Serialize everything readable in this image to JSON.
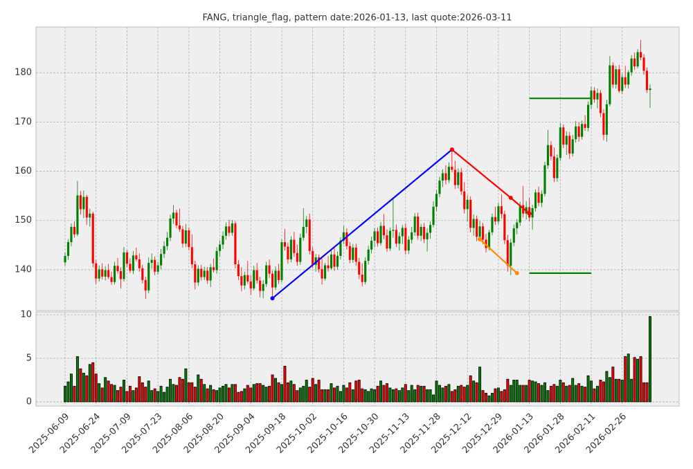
{
  "chart_data": {
    "type": "candlestick",
    "title": "FANG, triangle_flag, pattern date:2026-01-13, last quote:2026-03-11",
    "up_color": "green",
    "down_color": "red",
    "grid": true,
    "xlim": [
      -9.4,
      198.4
    ],
    "xticks": [
      {
        "value": 0,
        "label": "2025-06-09"
      },
      {
        "value": 10,
        "label": "2025-06-24"
      },
      {
        "value": 20,
        "label": "2025-07-09"
      },
      {
        "value": 30,
        "label": "2025-07-23"
      },
      {
        "value": 40,
        "label": "2025-08-06"
      },
      {
        "value": 50,
        "label": "2025-08-20"
      },
      {
        "value": 60,
        "label": "2025-09-04"
      },
      {
        "value": 70,
        "label": "2025-09-18"
      },
      {
        "value": 80,
        "label": "2025-10-02"
      },
      {
        "value": 90,
        "label": "2025-10-16"
      },
      {
        "value": 100,
        "label": "2025-10-30"
      },
      {
        "value": 110,
        "label": "2025-11-13"
      },
      {
        "value": 120,
        "label": "2025-11-28"
      },
      {
        "value": 130,
        "label": "2025-12-12"
      },
      {
        "value": 140,
        "label": "2025-12-29"
      },
      {
        "value": 150,
        "label": "2026-01-13"
      },
      {
        "value": 160,
        "label": "2026-01-28"
      },
      {
        "value": 170,
        "label": "2026-02-11"
      },
      {
        "value": 180,
        "label": "2026-02-26"
      }
    ],
    "ylim": [
      131.7,
      189.3
    ],
    "yticks": [
      140,
      150,
      160,
      170,
      180
    ],
    "volume_ylim": [
      -0.48,
      10.32
    ],
    "volume_yticks": [
      0,
      5,
      10
    ],
    "candles": [
      [
        141.5,
        143.5,
        140.8,
        142.8
      ],
      [
        142.8,
        146.2,
        142.0,
        145.6
      ],
      [
        145.6,
        149.4,
        144.8,
        148.7
      ],
      [
        148.7,
        149.8,
        146.5,
        147.2
      ],
      [
        147.2,
        158.0,
        146.8,
        155.1
      ],
      [
        155.1,
        156.0,
        151.2,
        152.3
      ],
      [
        152.3,
        156.1,
        150.5,
        154.8
      ],
      [
        154.8,
        155.2,
        149.1,
        150.6
      ],
      [
        150.6,
        152.4,
        148.8,
        151.4
      ],
      [
        151.4,
        151.8,
        140.5,
        141.3
      ],
      [
        141.3,
        142.0,
        137.1,
        138.2
      ],
      [
        138.2,
        140.9,
        137.6,
        140.1
      ],
      [
        140.1,
        141.3,
        138.0,
        138.6
      ],
      [
        138.6,
        140.7,
        137.8,
        139.9
      ],
      [
        139.9,
        141.2,
        138.1,
        138.5
      ],
      [
        138.5,
        139.6,
        136.9,
        137.5
      ],
      [
        137.5,
        141.6,
        137.0,
        140.8
      ],
      [
        140.8,
        142.4,
        139.2,
        139.7
      ],
      [
        139.7,
        140.5,
        136.2,
        138.1
      ],
      [
        138.1,
        144.6,
        137.6,
        143.5
      ],
      [
        143.5,
        144.0,
        140.5,
        141.2
      ],
      [
        141.2,
        142.3,
        139.3,
        139.8
      ],
      [
        139.8,
        143.8,
        139.1,
        142.9
      ],
      [
        142.9,
        144.5,
        141.7,
        142.1
      ],
      [
        142.1,
        143.3,
        139.6,
        140.3
      ],
      [
        140.3,
        141.0,
        137.2,
        137.9
      ],
      [
        137.9,
        138.6,
        134.1,
        135.8
      ],
      [
        135.8,
        142.5,
        135.2,
        141.4
      ],
      [
        141.4,
        143.3,
        140.2,
        142.0
      ],
      [
        142.0,
        142.7,
        138.9,
        139.6
      ],
      [
        139.6,
        141.6,
        139.0,
        140.9
      ],
      [
        140.9,
        144.2,
        140.1,
        143.2
      ],
      [
        143.2,
        145.8,
        142.4,
        144.8
      ],
      [
        144.8,
        147.7,
        144.0,
        146.5
      ],
      [
        146.5,
        151.2,
        145.8,
        150.4
      ],
      [
        150.4,
        153.1,
        149.3,
        151.6
      ],
      [
        151.6,
        152.2,
        148.4,
        149.0
      ],
      [
        149.0,
        152.4,
        147.7,
        148.2
      ],
      [
        148.2,
        148.9,
        144.5,
        145.3
      ],
      [
        145.3,
        149.3,
        144.6,
        148.0
      ],
      [
        148.0,
        148.6,
        143.9,
        144.6
      ],
      [
        144.6,
        147.2,
        140.3,
        141.1
      ],
      [
        141.1,
        141.8,
        136.0,
        137.4
      ],
      [
        137.4,
        140.9,
        136.7,
        140.2
      ],
      [
        140.2,
        141.0,
        137.8,
        138.5
      ],
      [
        138.5,
        140.6,
        137.9,
        139.8
      ],
      [
        139.8,
        140.5,
        137.1,
        137.8
      ],
      [
        137.8,
        141.2,
        136.5,
        140.5
      ],
      [
        140.5,
        142.3,
        139.4,
        139.9
      ],
      [
        139.9,
        144.6,
        139.2,
        143.8
      ],
      [
        143.8,
        145.9,
        142.7,
        145.1
      ],
      [
        145.1,
        147.8,
        144.2,
        146.9
      ],
      [
        146.9,
        149.6,
        146.1,
        148.8
      ],
      [
        148.8,
        150.2,
        146.8,
        147.5
      ],
      [
        147.5,
        150.1,
        146.9,
        149.4
      ],
      [
        149.4,
        149.9,
        140.3,
        141.1
      ],
      [
        141.1,
        142.0,
        137.9,
        138.7
      ],
      [
        138.7,
        140.5,
        135.6,
        136.8
      ],
      [
        136.8,
        139.6,
        136.0,
        138.9
      ],
      [
        138.9,
        141.8,
        137.1,
        137.6
      ],
      [
        137.6,
        138.9,
        134.9,
        136.2
      ],
      [
        136.2,
        140.8,
        135.8,
        139.9
      ],
      [
        139.9,
        141.4,
        137.2,
        137.8
      ],
      [
        137.8,
        138.6,
        134.4,
        135.7
      ],
      [
        135.7,
        137.9,
        134.2,
        137.1
      ],
      [
        137.1,
        141.6,
        136.5,
        140.9
      ],
      [
        140.9,
        142.1,
        138.3,
        139.2
      ],
      [
        139.2,
        139.8,
        134.2,
        136.4
      ],
      [
        136.4,
        140.7,
        135.9,
        139.8
      ],
      [
        139.8,
        141.2,
        137.1,
        137.9
      ],
      [
        137.9,
        146.2,
        137.4,
        145.6
      ],
      [
        145.6,
        148.3,
        143.9,
        144.7
      ],
      [
        144.7,
        145.5,
        141.2,
        142.1
      ],
      [
        142.1,
        146.8,
        141.5,
        146.1
      ],
      [
        146.1,
        147.7,
        142.6,
        143.4
      ],
      [
        143.4,
        145.1,
        140.8,
        141.6
      ],
      [
        141.6,
        147.3,
        141.0,
        146.5
      ],
      [
        146.5,
        152.5,
        145.9,
        148.7
      ],
      [
        148.7,
        150.9,
        147.4,
        150.2
      ],
      [
        150.2,
        151.4,
        143.1,
        143.8
      ],
      [
        143.8,
        144.6,
        140.3,
        141.0
      ],
      [
        141.0,
        143.2,
        139.6,
        142.5
      ],
      [
        142.5,
        143.1,
        139.4,
        140.1
      ],
      [
        140.1,
        142.3,
        137.0,
        138.2
      ],
      [
        138.2,
        141.4,
        137.8,
        140.9
      ],
      [
        140.9,
        142.8,
        139.6,
        140.3
      ],
      [
        140.3,
        143.9,
        140.0,
        143.1
      ],
      [
        143.1,
        144.4,
        139.8,
        140.6
      ],
      [
        140.6,
        143.7,
        140.0,
        142.8
      ],
      [
        142.8,
        146.6,
        142.1,
        145.9
      ],
      [
        145.9,
        148.9,
        145.2,
        147.6
      ],
      [
        147.6,
        148.4,
        144.1,
        144.8
      ],
      [
        144.8,
        145.6,
        141.3,
        142.0
      ],
      [
        142.0,
        145.2,
        141.4,
        144.5
      ],
      [
        144.5,
        145.3,
        140.8,
        141.6
      ],
      [
        141.6,
        142.4,
        138.1,
        139.0
      ],
      [
        139.0,
        141.3,
        136.6,
        137.5
      ],
      [
        137.5,
        142.5,
        137.0,
        141.8
      ],
      [
        141.8,
        144.9,
        141.1,
        144.1
      ],
      [
        144.1,
        146.7,
        143.3,
        145.9
      ],
      [
        145.9,
        148.5,
        144.6,
        147.8
      ],
      [
        147.8,
        148.6,
        144.7,
        145.4
      ],
      [
        145.4,
        149.7,
        144.9,
        148.9
      ],
      [
        148.9,
        151.3,
        146.2,
        147.0
      ],
      [
        147.0,
        148.2,
        143.6,
        144.3
      ],
      [
        144.3,
        148.6,
        143.8,
        147.9
      ],
      [
        147.9,
        154.4,
        146.5,
        148.1
      ],
      [
        148.1,
        149.2,
        144.6,
        145.3
      ],
      [
        145.3,
        147.6,
        143.9,
        146.8
      ],
      [
        146.8,
        149.1,
        145.2,
        148.5
      ],
      [
        148.5,
        149.4,
        143.1,
        143.9
      ],
      [
        143.9,
        146.8,
        143.2,
        146.1
      ],
      [
        146.1,
        148.7,
        145.3,
        147.6
      ],
      [
        147.6,
        151.5,
        146.9,
        150.8
      ],
      [
        150.8,
        151.6,
        146.1,
        146.9
      ],
      [
        146.9,
        149.3,
        145.8,
        148.7
      ],
      [
        148.7,
        149.5,
        145.4,
        146.2
      ],
      [
        146.2,
        148.4,
        143.7,
        147.5
      ],
      [
        147.5,
        149.8,
        146.3,
        149.1
      ],
      [
        149.1,
        153.9,
        148.6,
        152.8
      ],
      [
        152.8,
        156.2,
        151.9,
        155.4
      ],
      [
        155.4,
        158.9,
        154.7,
        158.1
      ],
      [
        158.1,
        160.4,
        156.8,
        159.6
      ],
      [
        159.6,
        161.2,
        157.3,
        158.2
      ],
      [
        158.2,
        161.8,
        157.6,
        160.9
      ],
      [
        160.9,
        164.5,
        159.8,
        160.3
      ],
      [
        160.3,
        162.1,
        156.4,
        157.2
      ],
      [
        157.2,
        160.6,
        156.5,
        159.8
      ],
      [
        159.8,
        160.7,
        155.2,
        155.9
      ],
      [
        155.9,
        157.8,
        151.4,
        152.3
      ],
      [
        152.3,
        155.1,
        149.8,
        154.2
      ],
      [
        154.2,
        154.9,
        147.6,
        148.5
      ],
      [
        148.5,
        151.2,
        146.9,
        150.3
      ],
      [
        150.3,
        151.0,
        145.8,
        146.7
      ],
      [
        146.7,
        149.9,
        146.1,
        148.8
      ],
      [
        148.8,
        149.5,
        145.2,
        146.1
      ],
      [
        146.1,
        147.3,
        143.5,
        144.4
      ],
      [
        144.4,
        148.1,
        143.9,
        147.6
      ],
      [
        147.6,
        151.4,
        147.0,
        150.7
      ],
      [
        150.7,
        152.8,
        149.1,
        149.8
      ],
      [
        149.8,
        153.6,
        149.2,
        152.9
      ],
      [
        152.9,
        155.3,
        150.4,
        151.3
      ],
      [
        151.3,
        152.0,
        145.2,
        146.0
      ],
      [
        146.0,
        147.1,
        139.6,
        140.8
      ],
      [
        140.8,
        146.3,
        138.9,
        145.5
      ],
      [
        145.5,
        149.2,
        144.8,
        148.4
      ],
      [
        148.4,
        150.3,
        147.2,
        149.6
      ],
      [
        149.6,
        153.8,
        148.9,
        153.1
      ],
      [
        153.1,
        157.0,
        150.6,
        151.4
      ],
      [
        151.4,
        153.9,
        150.2,
        152.7
      ],
      [
        152.7,
        154.6,
        149.8,
        150.6
      ],
      [
        150.6,
        153.2,
        148.1,
        152.5
      ],
      [
        152.5,
        156.3,
        151.8,
        155.7
      ],
      [
        155.7,
        156.9,
        152.9,
        153.6
      ],
      [
        153.6,
        156.1,
        152.7,
        155.4
      ],
      [
        155.4,
        161.9,
        154.9,
        161.2
      ],
      [
        161.2,
        168.4,
        160.5,
        165.3
      ],
      [
        165.3,
        166.1,
        162.2,
        163.0
      ],
      [
        163.0,
        164.8,
        157.8,
        158.6
      ],
      [
        158.6,
        163.4,
        157.9,
        162.7
      ],
      [
        162.7,
        169.8,
        162.1,
        168.9
      ],
      [
        168.9,
        169.5,
        164.7,
        165.4
      ],
      [
        165.4,
        168.1,
        163.3,
        167.2
      ],
      [
        167.2,
        168.0,
        162.5,
        163.6
      ],
      [
        163.6,
        167.4,
        163.0,
        166.5
      ],
      [
        166.5,
        170.2,
        165.8,
        169.1
      ],
      [
        169.1,
        170.0,
        166.0,
        167.0
      ],
      [
        167.0,
        170.3,
        166.4,
        169.6
      ],
      [
        169.6,
        171.4,
        168.2,
        168.8
      ],
      [
        168.8,
        174.2,
        168.1,
        173.5
      ],
      [
        173.5,
        177.2,
        172.6,
        176.4
      ],
      [
        176.4,
        177.1,
        173.9,
        174.6
      ],
      [
        174.6,
        176.8,
        172.8,
        175.9
      ],
      [
        175.9,
        176.5,
        171.0,
        171.8
      ],
      [
        171.8,
        172.6,
        166.3,
        167.4
      ],
      [
        167.4,
        174.5,
        166.0,
        173.6
      ],
      [
        173.6,
        183.4,
        173.2,
        181.5
      ],
      [
        181.5,
        182.1,
        176.9,
        177.6
      ],
      [
        177.6,
        181.4,
        176.8,
        180.7
      ],
      [
        180.7,
        181.6,
        175.9,
        176.3
      ],
      [
        176.3,
        179.8,
        175.7,
        179.1
      ],
      [
        179.1,
        181.4,
        176.9,
        177.6
      ],
      [
        177.6,
        180.5,
        176.8,
        180.1
      ],
      [
        180.1,
        183.6,
        179.4,
        182.9
      ],
      [
        182.9,
        184.1,
        180.6,
        181.3
      ],
      [
        181.3,
        184.8,
        180.9,
        184.2
      ],
      [
        184.2,
        186.7,
        182.5,
        183.1
      ],
      [
        183.1,
        183.8,
        179.6,
        180.4
      ],
      [
        180.4,
        181.1,
        175.9,
        176.5
      ],
      [
        176.5,
        177.6,
        172.9,
        176.8
      ]
    ],
    "volume": [
      1.8,
      2.3,
      3.2,
      1.8,
      5.2,
      3.8,
      3.3,
      3.0,
      4.3,
      4.5,
      3.2,
      2.1,
      1.6,
      2.8,
      2.4,
      2.0,
      1.9,
      1.3,
      1.7,
      2.5,
      1.2,
      1.8,
      1.3,
      1.6,
      2.9,
      2.2,
      1.7,
      2.4,
      1.3,
      1.5,
      1.2,
      1.8,
      1.1,
      1.7,
      2.6,
      2.0,
      1.9,
      2.8,
      2.6,
      3.8,
      2.2,
      2.2,
      1.7,
      3.1,
      2.6,
      2.0,
      1.5,
      1.9,
      1.4,
      1.3,
      1.6,
      1.8,
      2.0,
      1.6,
      2.0,
      2.0,
      1.1,
      1.2,
      1.5,
      1.9,
      1.6,
      2.0,
      2.1,
      2.1,
      1.9,
      1.7,
      1.8,
      3.1,
      2.7,
      2.2,
      2.0,
      4.1,
      2.2,
      2.4,
      2.0,
      1.3,
      1.6,
      1.8,
      2.5,
      1.7,
      2.7,
      2.0,
      2.5,
      1.4,
      1.4,
      1.4,
      2.1,
      1.6,
      1.8,
      1.2,
      1.9,
      1.6,
      2.2,
      1.4,
      2.4,
      2.5,
      1.5,
      1.4,
      1.2,
      1.5,
      1.4,
      1.8,
      2.4,
      1.9,
      2.1,
      1.6,
      1.4,
      1.5,
      1.3,
      1.6,
      2.0,
      1.3,
      1.9,
      1.4,
      1.9,
      1.8,
      1.8,
      1.4,
      1.4,
      0.8,
      2.4,
      1.9,
      1.6,
      1.8,
      2.0,
      1.2,
      1.4,
      1.8,
      1.9,
      1.7,
      1.9,
      3.0,
      2.4,
      2.2,
      4.0,
      1.3,
      1.0,
      0.7,
      1.0,
      1.5,
      1.6,
      1.2,
      1.4,
      2.6,
      1.9,
      2.5,
      2.5,
      1.9,
      1.9,
      1.9,
      2.5,
      2.4,
      2.3,
      2.1,
      1.9,
      2.2,
      1.3,
      1.8,
      2.0,
      1.8,
      2.5,
      2.2,
      1.8,
      1.9,
      2.7,
      1.9,
      2.1,
      1.8,
      1.7,
      3.0,
      2.4,
      1.5,
      1.8,
      2.5,
      2.3,
      3.5,
      2.8,
      4.0,
      2.6,
      2.6,
      2.5,
      5.2,
      5.5,
      2.6,
      5.1,
      4.9,
      5.2,
      2.2,
      2.2,
      9.8
    ],
    "lines": [
      {
        "color": "blue",
        "markers": true,
        "points": [
          [
            67,
            134.2
          ],
          [
            125,
            164.4
          ]
        ]
      },
      {
        "color": "red",
        "markers": true,
        "points": [
          [
            125,
            164.4
          ],
          [
            144,
            154.6
          ],
          [
            150,
            151.4
          ]
        ]
      },
      {
        "color": "darkorange",
        "markers": true,
        "points": [
          [
            134,
            146.2
          ],
          [
            146,
            139.3
          ]
        ]
      },
      {
        "color": "green",
        "markers": false,
        "points": [
          [
            150,
            174.8
          ],
          [
            170,
            174.8
          ]
        ]
      },
      {
        "color": "green",
        "markers": false,
        "points": [
          [
            150,
            139.3
          ],
          [
            170,
            139.3
          ]
        ]
      }
    ]
  }
}
